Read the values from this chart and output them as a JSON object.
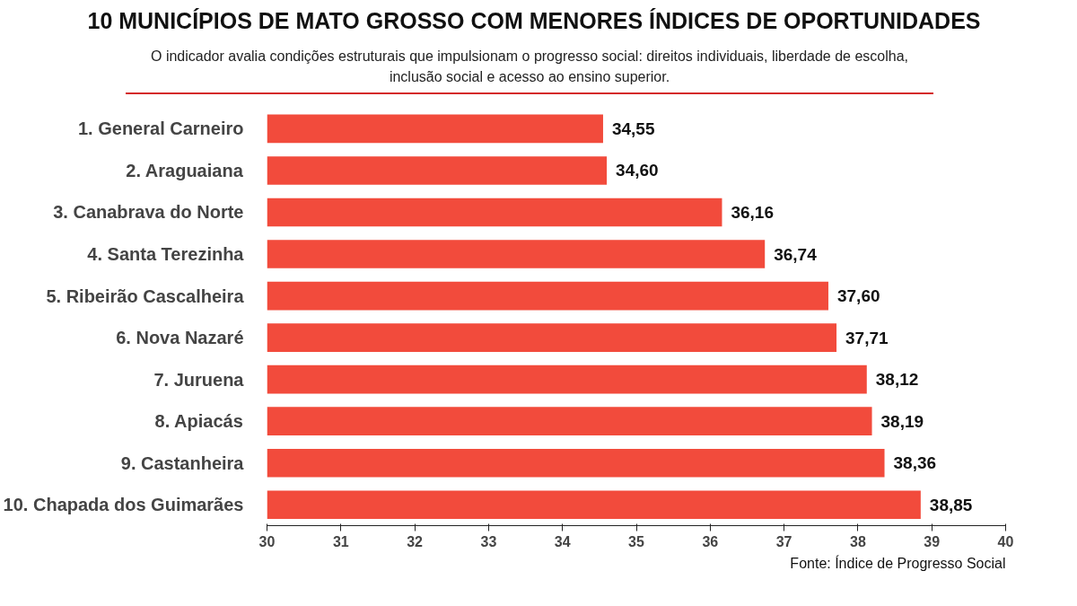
{
  "chart_data": {
    "type": "bar",
    "orientation": "horizontal",
    "title": "10 MUNICÍPIOS DE MATO GROSSO COM MENORES ÍNDICES DE OPORTUNIDADES",
    "subtitle": "O indicador avalia condições estruturais que impulsionam o progresso social: direitos individuais, liberdade de escolha, inclusão social e acesso ao ensino superior.",
    "categories": [
      "1. General Carneiro",
      "2. Araguaiana",
      "3. Canabrava do Norte",
      "4. Santa Terezinha",
      "5. Ribeirão Cascalheira",
      "6. Nova Nazaré",
      "7. Juruena",
      "8. Apiacás",
      "9. Castanheira",
      "10. Chapada dos Guimarães"
    ],
    "values": [
      34.55,
      34.6,
      36.16,
      36.74,
      37.6,
      37.71,
      38.12,
      38.19,
      38.36,
      38.85
    ],
    "value_labels": [
      "34,55",
      "34,60",
      "36,16",
      "36,74",
      "37,60",
      "37,71",
      "38,12",
      "38,19",
      "38,36",
      "38,85"
    ],
    "color": "#f24b3c",
    "xlim": [
      30,
      40
    ],
    "xticks": [
      30,
      31,
      32,
      33,
      34,
      35,
      36,
      37,
      38,
      39,
      40
    ],
    "grid": false,
    "annotations": [
      "Fonte: Índice de Progresso Social"
    ]
  }
}
